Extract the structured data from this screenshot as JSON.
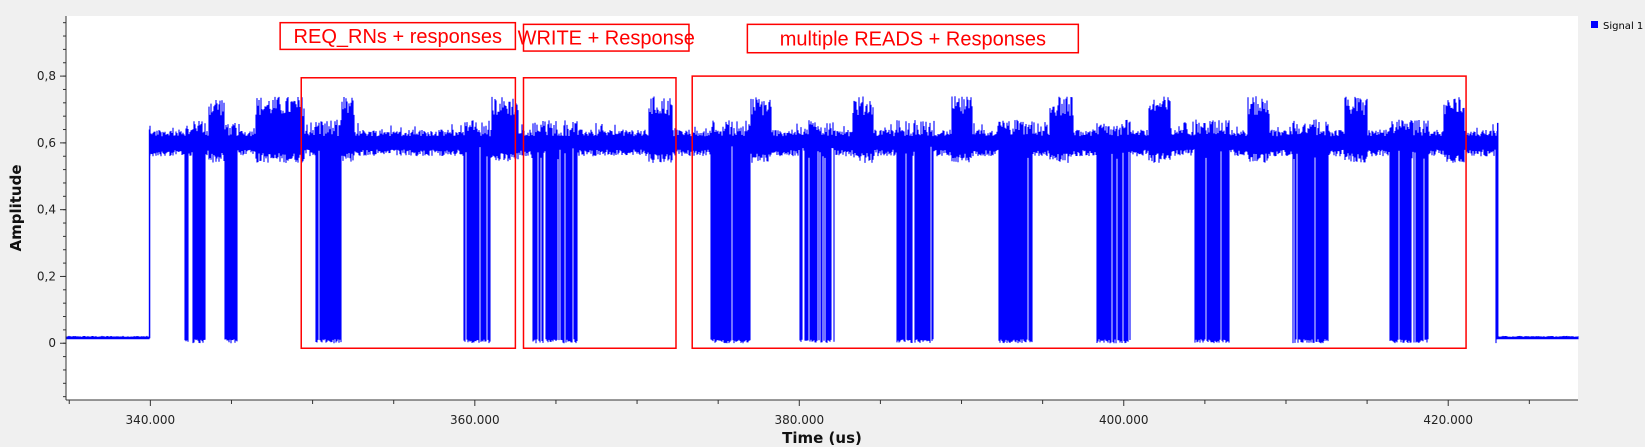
{
  "chart_data": {
    "type": "line",
    "title": "",
    "xlabel": "Time (us)",
    "ylabel": "Amplitude",
    "xlim": [
      334.8,
      428.0
    ],
    "ylim": [
      -0.17,
      0.98
    ],
    "x_ticks": [
      {
        "value": 340,
        "label": "340.000"
      },
      {
        "value": 360,
        "label": "360.000"
      },
      {
        "value": 380,
        "label": "380.000"
      },
      {
        "value": 400,
        "label": "400.000"
      },
      {
        "value": 420,
        "label": "420.000"
      }
    ],
    "y_ticks": [
      {
        "value": 0,
        "label": "0"
      },
      {
        "value": 0.2,
        "label": "0,2"
      },
      {
        "value": 0.4,
        "label": "0,4"
      },
      {
        "value": 0.6,
        "label": "0,6"
      },
      {
        "value": 0.8,
        "label": "0,8"
      }
    ],
    "grid": false,
    "legend_position": "top-right",
    "series": [
      {
        "name": "Signal 1",
        "color": "#0000ff",
        "baseline_value": 0.015,
        "carrier_value": 0.6,
        "segments": [
          {
            "x0": 334.8,
            "x1": 339.95,
            "level": 0.015,
            "kind": "off"
          },
          {
            "x0": 339.95,
            "x1": 423.05,
            "level": 0.6,
            "kind": "carrier"
          },
          {
            "x0": 423.05,
            "x1": 428.0,
            "level": 0.015,
            "kind": "off"
          }
        ],
        "modulation_bursts": [
          [
            342.1,
            342.35
          ],
          [
            342.6,
            343.4
          ],
          [
            344.6,
            345.4
          ],
          [
            350.1,
            351.8
          ],
          [
            359.3,
            361.0
          ],
          [
            363.5,
            366.3
          ],
          [
            374.5,
            377.0
          ],
          [
            380.0,
            382.2
          ],
          [
            386.0,
            388.3
          ],
          [
            392.2,
            394.4
          ],
          [
            398.3,
            400.4
          ],
          [
            404.3,
            406.5
          ],
          [
            410.4,
            412.6
          ],
          [
            416.4,
            418.8
          ],
          [
            422.9,
            423.4
          ]
        ],
        "response_bursts": [
          [
            343.6,
            345.2
          ],
          [
            346.5,
            349.5
          ],
          [
            351.6,
            352.6
          ],
          [
            361.0,
            362.7
          ],
          [
            370.7,
            372.2
          ],
          [
            377.0,
            378.3
          ],
          [
            383.3,
            384.6
          ],
          [
            389.4,
            390.7
          ],
          [
            395.4,
            396.9
          ],
          [
            401.5,
            402.9
          ],
          [
            407.6,
            409.0
          ],
          [
            413.6,
            415.0
          ],
          [
            419.7,
            421.0
          ]
        ]
      }
    ],
    "annotations": [
      {
        "label": "REQ_RNs  + responses",
        "label_x": [
          348.0,
          362.5
        ],
        "label_y": [
          0.88,
          0.96
        ],
        "box_x": [
          349.3,
          362.5
        ],
        "box_y": [
          -0.015,
          0.795
        ]
      },
      {
        "label": "WRITE + Response",
        "label_x": [
          363.0,
          373.2
        ],
        "label_y": [
          0.875,
          0.955
        ],
        "box_x": [
          363.0,
          372.4
        ],
        "box_y": [
          -0.015,
          0.795
        ]
      },
      {
        "label": "multiple READS + Responses",
        "label_x": [
          376.8,
          397.2
        ],
        "label_y": [
          0.87,
          0.955
        ],
        "box_x": [
          373.4,
          421.1
        ],
        "box_y": [
          -0.015,
          0.8
        ]
      }
    ]
  }
}
